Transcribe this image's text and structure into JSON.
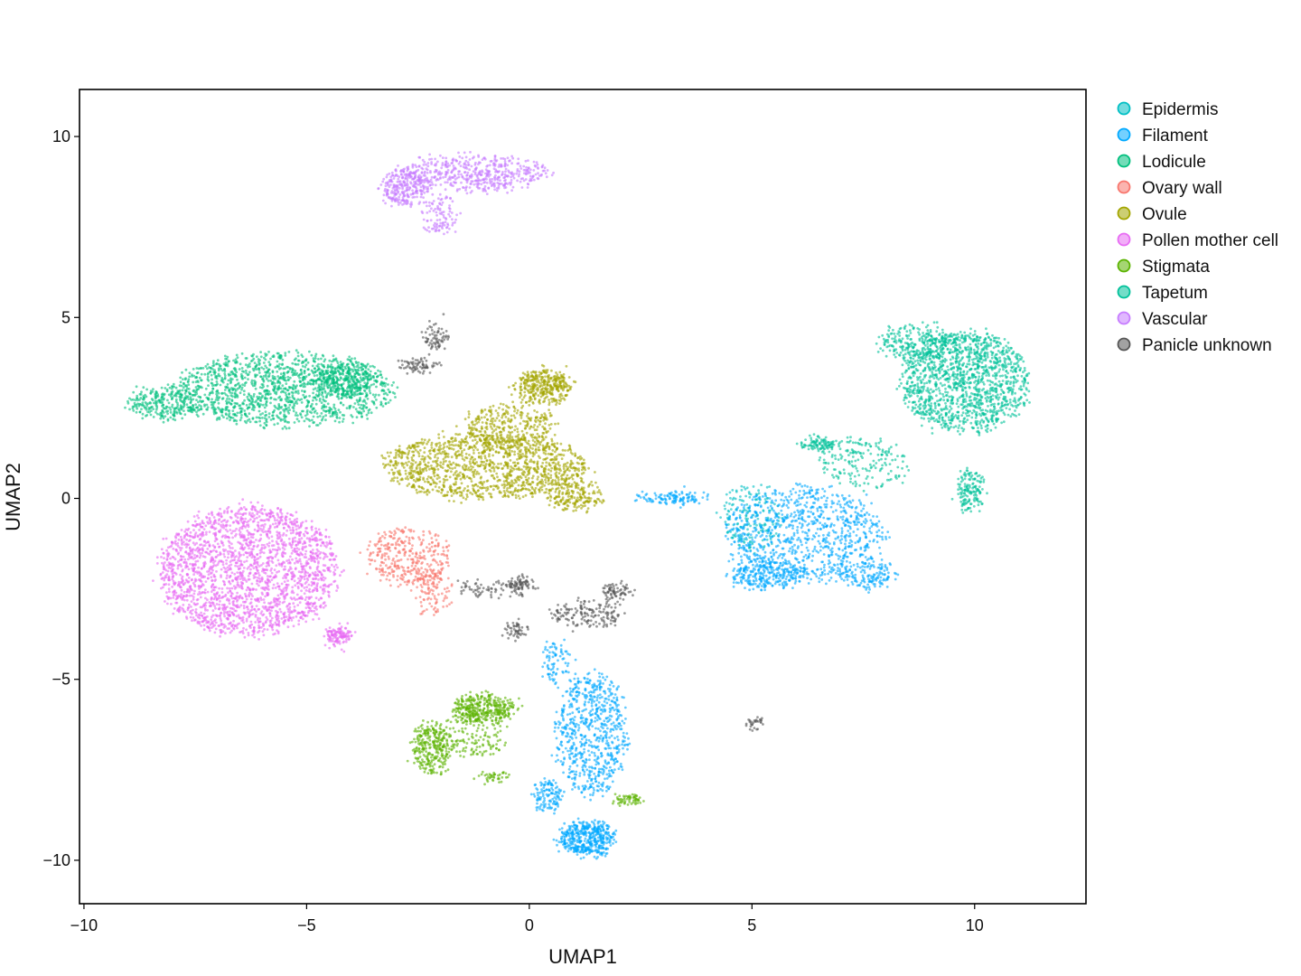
{
  "chart_data": {
    "type": "scatter",
    "title": "",
    "xlabel": "UMAP1",
    "ylabel": "UMAP2",
    "xlim": [
      -10.1,
      12.5
    ],
    "ylim": [
      -11.2,
      11.3
    ],
    "x_ticks": [
      -10,
      -5,
      0,
      5,
      10
    ],
    "y_ticks": [
      -10,
      -5,
      0,
      5,
      10
    ],
    "x_tick_labels": [
      "−10",
      "−5",
      "0",
      "5",
      "10"
    ],
    "y_tick_labels": [
      "−10",
      "−5",
      "0",
      "5",
      "10"
    ],
    "grid": false,
    "legend_position": "right",
    "series": [
      {
        "name": "Epidermis",
        "color": "#00BFC4",
        "regions": [
          {
            "cx": 5.0,
            "cy": -0.5,
            "rx": 0.7,
            "ry": 0.9,
            "n": 200
          }
        ]
      },
      {
        "name": "Filament",
        "color": "#00A9FF",
        "regions": [
          {
            "cx": 6.2,
            "cy": -1.0,
            "rx": 1.8,
            "ry": 1.3,
            "n": 900
          },
          {
            "cx": 5.3,
            "cy": -2.1,
            "rx": 0.8,
            "ry": 0.4,
            "n": 250
          },
          {
            "cx": 7.6,
            "cy": -2.1,
            "rx": 0.6,
            "ry": 0.4,
            "n": 150
          },
          {
            "cx": 3.2,
            "cy": 0.0,
            "rx": 0.8,
            "ry": 0.08,
            "n": 120
          },
          {
            "cx": 1.4,
            "cy": -6.5,
            "rx": 0.8,
            "ry": 1.7,
            "n": 700
          },
          {
            "cx": 1.3,
            "cy": -9.4,
            "rx": 0.6,
            "ry": 0.45,
            "n": 450
          },
          {
            "cx": 0.4,
            "cy": -8.2,
            "rx": 0.3,
            "ry": 0.4,
            "n": 120
          },
          {
            "cx": 0.6,
            "cy": -4.5,
            "rx": 0.3,
            "ry": 0.6,
            "n": 80
          }
        ]
      },
      {
        "name": "Lodicule",
        "color": "#00BF7D",
        "regions": [
          {
            "cx": -5.5,
            "cy": 3.0,
            "rx": 2.5,
            "ry": 1.0,
            "n": 1400
          },
          {
            "cx": -8.2,
            "cy": 2.6,
            "rx": 0.8,
            "ry": 0.4,
            "n": 250
          },
          {
            "cx": -4.2,
            "cy": 3.3,
            "rx": 0.6,
            "ry": 0.5,
            "n": 300
          }
        ]
      },
      {
        "name": "Ovary wall",
        "color": "#F8766D",
        "regions": [
          {
            "cx": -2.7,
            "cy": -1.6,
            "rx": 0.9,
            "ry": 0.8,
            "n": 350
          },
          {
            "cx": -2.2,
            "cy": -2.6,
            "rx": 0.4,
            "ry": 0.6,
            "n": 100
          }
        ]
      },
      {
        "name": "Ovule",
        "color": "#A3A500",
        "regions": [
          {
            "cx": -1.0,
            "cy": 0.9,
            "rx": 2.3,
            "ry": 0.9,
            "n": 1300
          },
          {
            "cx": 0.3,
            "cy": 3.1,
            "rx": 0.6,
            "ry": 0.45,
            "n": 350
          },
          {
            "cx": -0.4,
            "cy": 2.0,
            "rx": 1.0,
            "ry": 0.6,
            "n": 300
          },
          {
            "cx": 1.0,
            "cy": 0.1,
            "rx": 0.6,
            "ry": 0.4,
            "n": 200
          }
        ]
      },
      {
        "name": "Pollen mother cell",
        "color": "#E76BF3",
        "regions": [
          {
            "cx": -6.3,
            "cy": -2.0,
            "rx": 2.0,
            "ry": 1.8,
            "n": 2200
          },
          {
            "cx": -4.3,
            "cy": -3.8,
            "rx": 0.3,
            "ry": 0.2,
            "n": 120
          }
        ]
      },
      {
        "name": "Stigmata",
        "color": "#5BB300",
        "regions": [
          {
            "cx": -1.0,
            "cy": -5.8,
            "rx": 0.7,
            "ry": 0.35,
            "n": 350
          },
          {
            "cx": -2.2,
            "cy": -6.9,
            "rx": 0.4,
            "ry": 0.7,
            "n": 280
          },
          {
            "cx": -1.3,
            "cy": -6.6,
            "rx": 0.7,
            "ry": 0.6,
            "n": 150
          },
          {
            "cx": 2.2,
            "cy": -8.3,
            "rx": 0.3,
            "ry": 0.08,
            "n": 60
          },
          {
            "cx": -0.8,
            "cy": -7.7,
            "rx": 0.3,
            "ry": 0.1,
            "n": 40
          }
        ]
      },
      {
        "name": "Tapetum",
        "color": "#00C19A",
        "regions": [
          {
            "cx": 9.8,
            "cy": 3.2,
            "rx": 1.4,
            "ry": 1.4,
            "n": 1400
          },
          {
            "cx": 8.7,
            "cy": 4.3,
            "rx": 0.8,
            "ry": 0.5,
            "n": 250
          },
          {
            "cx": 9.9,
            "cy": 0.2,
            "rx": 0.25,
            "ry": 0.6,
            "n": 150
          },
          {
            "cx": 6.5,
            "cy": 1.5,
            "rx": 0.4,
            "ry": 0.15,
            "n": 100
          },
          {
            "cx": 7.5,
            "cy": 1.0,
            "rx": 1.0,
            "ry": 0.7,
            "n": 180
          }
        ]
      },
      {
        "name": "Vascular",
        "color": "#C77CFF",
        "regions": [
          {
            "cx": -1.2,
            "cy": 9.0,
            "rx": 1.7,
            "ry": 0.45,
            "n": 500
          },
          {
            "cx": -2.8,
            "cy": 8.6,
            "rx": 0.5,
            "ry": 0.5,
            "n": 250
          },
          {
            "cx": -2.0,
            "cy": 7.8,
            "rx": 0.35,
            "ry": 0.5,
            "n": 100
          }
        ]
      },
      {
        "name": "Panicle unknown",
        "color": "#555555",
        "regions": [
          {
            "cx": -2.1,
            "cy": 4.5,
            "rx": 0.25,
            "ry": 0.35,
            "n": 70
          },
          {
            "cx": -2.5,
            "cy": 3.7,
            "rx": 0.4,
            "ry": 0.15,
            "n": 70
          },
          {
            "cx": -0.2,
            "cy": -2.4,
            "rx": 0.25,
            "ry": 0.2,
            "n": 80
          },
          {
            "cx": 1.3,
            "cy": -3.2,
            "rx": 0.8,
            "ry": 0.35,
            "n": 160
          },
          {
            "cx": 2.0,
            "cy": -2.6,
            "rx": 0.3,
            "ry": 0.2,
            "n": 70
          },
          {
            "cx": -0.3,
            "cy": -3.6,
            "rx": 0.2,
            "ry": 0.2,
            "n": 50
          },
          {
            "cx": -1.0,
            "cy": -2.5,
            "rx": 0.6,
            "ry": 0.2,
            "n": 60
          },
          {
            "cx": 5.1,
            "cy": -6.2,
            "rx": 0.15,
            "ry": 0.1,
            "n": 30
          }
        ]
      }
    ]
  }
}
